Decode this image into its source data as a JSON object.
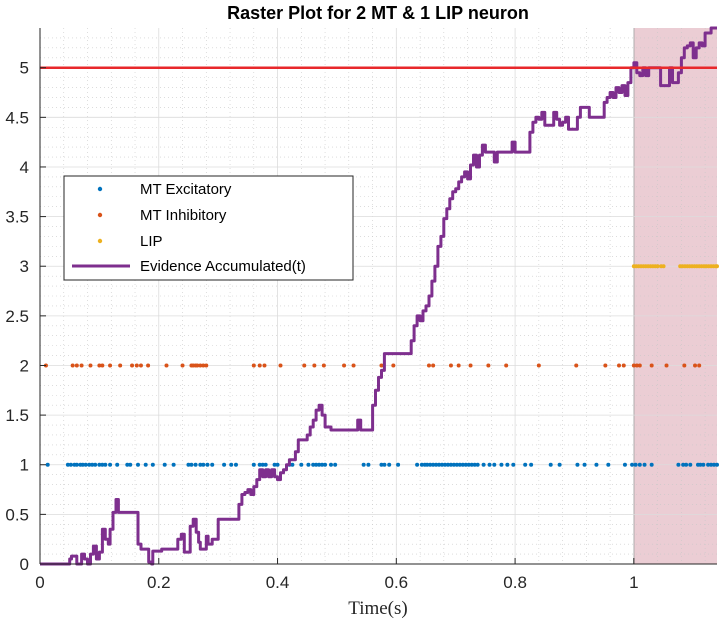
{
  "chart_data": {
    "type": "scatter",
    "title": "Raster Plot for 2 MT & 1 LIP neuron",
    "xlabel": "Time(s)",
    "ylabel": "",
    "xlim": [
      0,
      1.14
    ],
    "ylim": [
      0,
      5.4
    ],
    "xticks": [
      0,
      0.2,
      0.4,
      0.6,
      0.8,
      1
    ],
    "xtick_labels": [
      "0",
      "0.2",
      "0.4",
      "0.6",
      "0.8",
      "1"
    ],
    "yticks": [
      0,
      0.5,
      1,
      1.5,
      2,
      2.5,
      3,
      3.5,
      4,
      4.5,
      5
    ],
    "ytick_labels": [
      "0",
      "0.5",
      "1",
      "1.5",
      "2",
      "2.5",
      "3",
      "3.5",
      "4",
      "4.5",
      "5"
    ],
    "grid": true,
    "minor_grid": true,
    "legend_position": "left",
    "threshold": {
      "y": 5,
      "color": "#e8282b"
    },
    "decision_region": {
      "x_start": 1.0,
      "x_end": 1.14,
      "color": "#e8c4cc"
    },
    "series": [
      {
        "name": "MT Excitatory",
        "kind": "points",
        "color": "#0072bd",
        "y": 1,
        "x": [
          0.013,
          0.047,
          0.052,
          0.058,
          0.062,
          0.068,
          0.072,
          0.077,
          0.083,
          0.088,
          0.093,
          0.1,
          0.105,
          0.11,
          0.118,
          0.13,
          0.147,
          0.152,
          0.165,
          0.178,
          0.19,
          0.21,
          0.225,
          0.25,
          0.255,
          0.262,
          0.27,
          0.275,
          0.282,
          0.29,
          0.31,
          0.322,
          0.33,
          0.36,
          0.37,
          0.375,
          0.38,
          0.395,
          0.4,
          0.42,
          0.425,
          0.44,
          0.452,
          0.46,
          0.465,
          0.47,
          0.475,
          0.48,
          0.49,
          0.497,
          0.545,
          0.553,
          0.575,
          0.58,
          0.588,
          0.603,
          0.635,
          0.643,
          0.648,
          0.652,
          0.657,
          0.662,
          0.667,
          0.672,
          0.677,
          0.682,
          0.687,
          0.692,
          0.697,
          0.702,
          0.707,
          0.712,
          0.717,
          0.722,
          0.727,
          0.732,
          0.737,
          0.747,
          0.757,
          0.765,
          0.777,
          0.787,
          0.797,
          0.817,
          0.827,
          0.86,
          0.875,
          0.905,
          0.917,
          0.937,
          0.957,
          0.985,
          0.997,
          1.003,
          1.01,
          1.018,
          1.03,
          1.075,
          1.083,
          1.088,
          1.095,
          1.108,
          1.112,
          1.117,
          1.125,
          1.13,
          1.135,
          1.14
        ]
      },
      {
        "name": "MT Inhibitory",
        "kind": "points",
        "color": "#d95319",
        "y": 2,
        "x": [
          0.01,
          0.055,
          0.062,
          0.07,
          0.085,
          0.1,
          0.105,
          0.118,
          0.135,
          0.155,
          0.163,
          0.17,
          0.182,
          0.213,
          0.24,
          0.255,
          0.258,
          0.262,
          0.265,
          0.27,
          0.275,
          0.28,
          0.36,
          0.37,
          0.378,
          0.405,
          0.445,
          0.462,
          0.478,
          0.512,
          0.528,
          0.575,
          0.595,
          0.655,
          0.662,
          0.692,
          0.705,
          0.725,
          0.755,
          0.785,
          0.84,
          0.903,
          0.952,
          0.975,
          0.983,
          1.0,
          1.005,
          1.01,
          1.03,
          1.055,
          1.085,
          1.103,
          1.11
        ]
      },
      {
        "name": "LIP",
        "kind": "points",
        "color": "#edb120",
        "y": 3,
        "x": [
          1.0,
          1.004,
          1.008,
          1.012,
          1.016,
          1.02,
          1.024,
          1.028,
          1.032,
          1.036,
          1.04,
          1.046,
          1.05,
          1.078,
          1.082,
          1.086,
          1.09,
          1.094,
          1.098,
          1.102,
          1.106,
          1.11,
          1.114,
          1.118,
          1.122,
          1.126,
          1.13,
          1.134,
          1.138,
          1.14
        ]
      },
      {
        "name": "Evidence Accumulated(t)",
        "kind": "stairs",
        "color": "#7e2f8e",
        "points": [
          [
            0,
            0
          ],
          [
            0.048,
            0
          ],
          [
            0.05,
            0.05
          ],
          [
            0.053,
            0.08
          ],
          [
            0.06,
            0.08
          ],
          [
            0.062,
            0
          ],
          [
            0.068,
            0
          ],
          [
            0.07,
            0.1
          ],
          [
            0.075,
            0.05
          ],
          [
            0.08,
            0
          ],
          [
            0.085,
            0.1
          ],
          [
            0.09,
            0.18
          ],
          [
            0.095,
            0.05
          ],
          [
            0.1,
            0.12
          ],
          [
            0.105,
            0.35
          ],
          [
            0.11,
            0.25
          ],
          [
            0.115,
            0.2
          ],
          [
            0.118,
            0.35
          ],
          [
            0.123,
            0.52
          ],
          [
            0.128,
            0.65
          ],
          [
            0.132,
            0.52
          ],
          [
            0.16,
            0.52
          ],
          [
            0.165,
            0.2
          ],
          [
            0.17,
            0.15
          ],
          [
            0.178,
            0.15
          ],
          [
            0.183,
            0.02
          ],
          [
            0.188,
            0
          ],
          [
            0.19,
            0.13
          ],
          [
            0.2,
            0.13
          ],
          [
            0.205,
            0.15
          ],
          [
            0.228,
            0.15
          ],
          [
            0.232,
            0.25
          ],
          [
            0.238,
            0.3
          ],
          [
            0.243,
            0.12
          ],
          [
            0.25,
            0.12
          ],
          [
            0.253,
            0.38
          ],
          [
            0.258,
            0.45
          ],
          [
            0.263,
            0.32
          ],
          [
            0.267,
            0.22
          ],
          [
            0.27,
            0.15
          ],
          [
            0.275,
            0.15
          ],
          [
            0.28,
            0.28
          ],
          [
            0.283,
            0.2
          ],
          [
            0.287,
            0.2
          ],
          [
            0.29,
            0.25
          ],
          [
            0.3,
            0.45
          ],
          [
            0.33,
            0.45
          ],
          [
            0.335,
            0.6
          ],
          [
            0.34,
            0.7
          ],
          [
            0.345,
            0.72
          ],
          [
            0.35,
            0.75
          ],
          [
            0.355,
            0.7
          ],
          [
            0.36,
            0.78
          ],
          [
            0.365,
            0.85
          ],
          [
            0.37,
            0.95
          ],
          [
            0.375,
            0.88
          ],
          [
            0.38,
            0.95
          ],
          [
            0.385,
            0.88
          ],
          [
            0.39,
            0.95
          ],
          [
            0.395,
            0.88
          ],
          [
            0.4,
            0.85
          ],
          [
            0.405,
            0.92
          ],
          [
            0.41,
            0.95
          ],
          [
            0.415,
            1.0
          ],
          [
            0.42,
            1.05
          ],
          [
            0.43,
            1.13
          ],
          [
            0.435,
            1.25
          ],
          [
            0.445,
            1.25
          ],
          [
            0.45,
            1.3
          ],
          [
            0.455,
            1.38
          ],
          [
            0.46,
            1.45
          ],
          [
            0.465,
            1.55
          ],
          [
            0.47,
            1.6
          ],
          [
            0.475,
            1.5
          ],
          [
            0.48,
            1.38
          ],
          [
            0.49,
            1.35
          ],
          [
            0.53,
            1.35
          ],
          [
            0.535,
            1.45
          ],
          [
            0.54,
            1.35
          ],
          [
            0.555,
            1.35
          ],
          [
            0.56,
            1.6
          ],
          [
            0.565,
            1.75
          ],
          [
            0.57,
            1.88
          ],
          [
            0.575,
            1.95
          ],
          [
            0.58,
            2.12
          ],
          [
            0.62,
            2.12
          ],
          [
            0.625,
            2.25
          ],
          [
            0.63,
            2.4
          ],
          [
            0.635,
            2.5
          ],
          [
            0.64,
            2.45
          ],
          [
            0.645,
            2.55
          ],
          [
            0.65,
            2.6
          ],
          [
            0.655,
            2.7
          ],
          [
            0.66,
            2.85
          ],
          [
            0.665,
            3.0
          ],
          [
            0.67,
            3.2
          ],
          [
            0.675,
            3.3
          ],
          [
            0.68,
            3.48
          ],
          [
            0.685,
            3.58
          ],
          [
            0.69,
            3.68
          ],
          [
            0.695,
            3.75
          ],
          [
            0.7,
            3.78
          ],
          [
            0.705,
            3.85
          ],
          [
            0.71,
            3.9
          ],
          [
            0.715,
            3.95
          ],
          [
            0.72,
            3.88
          ],
          [
            0.725,
            4.02
          ],
          [
            0.73,
            4.12
          ],
          [
            0.735,
            4.0
          ],
          [
            0.74,
            4.12
          ],
          [
            0.745,
            4.22
          ],
          [
            0.75,
            4.15
          ],
          [
            0.76,
            4.15
          ],
          [
            0.765,
            4.05
          ],
          [
            0.77,
            4.15
          ],
          [
            0.79,
            4.15
          ],
          [
            0.795,
            4.25
          ],
          [
            0.8,
            4.15
          ],
          [
            0.82,
            4.15
          ],
          [
            0.825,
            4.35
          ],
          [
            0.83,
            4.45
          ],
          [
            0.835,
            4.5
          ],
          [
            0.84,
            4.48
          ],
          [
            0.845,
            4.55
          ],
          [
            0.85,
            4.42
          ],
          [
            0.86,
            4.42
          ],
          [
            0.865,
            4.55
          ],
          [
            0.87,
            4.48
          ],
          [
            0.875,
            4.42
          ],
          [
            0.88,
            4.45
          ],
          [
            0.885,
            4.5
          ],
          [
            0.89,
            4.38
          ],
          [
            0.9,
            4.38
          ],
          [
            0.905,
            4.5
          ],
          [
            0.91,
            4.6
          ],
          [
            0.92,
            4.6
          ],
          [
            0.925,
            4.5
          ],
          [
            0.945,
            4.5
          ],
          [
            0.95,
            4.65
          ],
          [
            0.955,
            4.7
          ],
          [
            0.96,
            4.75
          ],
          [
            0.965,
            4.7
          ],
          [
            0.97,
            4.8
          ],
          [
            0.975,
            4.75
          ],
          [
            0.98,
            4.82
          ],
          [
            0.985,
            4.72
          ],
          [
            0.99,
            4.85
          ],
          [
            0.995,
            5.0
          ],
          [
            1.0,
            5.05
          ],
          [
            1.005,
            4.95
          ],
          [
            1.01,
            4.92
          ],
          [
            1.015,
            5.0
          ],
          [
            1.02,
            4.92
          ],
          [
            1.025,
            5.0
          ],
          [
            1.04,
            5.0
          ],
          [
            1.045,
            4.82
          ],
          [
            1.055,
            4.82
          ],
          [
            1.06,
            5.0
          ],
          [
            1.065,
            4.85
          ],
          [
            1.07,
            4.85
          ],
          [
            1.075,
            4.95
          ],
          [
            1.08,
            5.1
          ],
          [
            1.085,
            5.2
          ],
          [
            1.09,
            5.22
          ],
          [
            1.095,
            5.25
          ],
          [
            1.1,
            5.1
          ],
          [
            1.105,
            5.2
          ],
          [
            1.11,
            5.25
          ],
          [
            1.115,
            5.22
          ],
          [
            1.12,
            5.35
          ],
          [
            1.125,
            5.35
          ],
          [
            1.13,
            5.4
          ],
          [
            1.14,
            5.4
          ]
        ]
      }
    ]
  }
}
